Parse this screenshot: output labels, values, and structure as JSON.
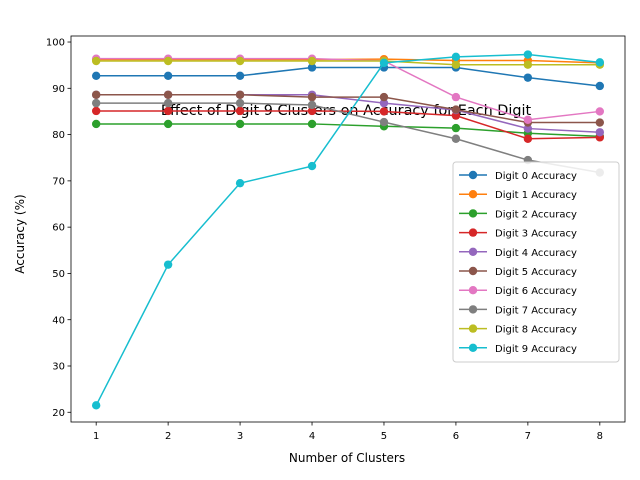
{
  "chart_data": {
    "type": "line",
    "title": "Effect of Digit 9 Clusters on Accuracy for Each Digit",
    "xlabel": "Number of Clusters",
    "ylabel": "Accuracy (%)",
    "x": [
      1,
      2,
      3,
      4,
      5,
      6,
      7,
      8
    ],
    "xlim": [
      0.65,
      8.35
    ],
    "ylim": [
      17.9,
      101.3
    ],
    "xticks": [
      "1",
      "2",
      "3",
      "4",
      "5",
      "6",
      "7",
      "8"
    ],
    "yticks": [
      "20",
      "30",
      "40",
      "50",
      "60",
      "70",
      "80",
      "90",
      "100"
    ],
    "grid": false,
    "legend_position": "lower right",
    "series": [
      {
        "name": "Digit 0 Accuracy",
        "color": "#1f77b4",
        "values": [
          92.7,
          92.7,
          92.7,
          94.5,
          94.5,
          94.5,
          92.3,
          90.5
        ]
      },
      {
        "name": "Digit 1 Accuracy",
        "color": "#ff7f0e",
        "values": [
          96.2,
          96.2,
          96.2,
          96.2,
          96.3,
          96.0,
          96.0,
          95.5
        ]
      },
      {
        "name": "Digit 2 Accuracy",
        "color": "#2ca02c",
        "values": [
          82.3,
          82.3,
          82.3,
          82.3,
          81.8,
          81.4,
          80.3,
          79.6
        ]
      },
      {
        "name": "Digit 3 Accuracy",
        "color": "#d62728",
        "values": [
          85.1,
          85.1,
          85.1,
          85.1,
          85.0,
          84.1,
          79.1,
          79.4
        ]
      },
      {
        "name": "Digit 4 Accuracy",
        "color": "#9467bd",
        "values": [
          88.6,
          88.6,
          88.6,
          88.6,
          86.8,
          85.3,
          81.3,
          80.5
        ]
      },
      {
        "name": "Digit 5 Accuracy",
        "color": "#8c564b",
        "values": [
          88.6,
          88.6,
          88.6,
          88.1,
          88.1,
          85.4,
          82.6,
          82.6
        ]
      },
      {
        "name": "Digit 6 Accuracy",
        "color": "#e377c2",
        "values": [
          96.4,
          96.4,
          96.4,
          96.4,
          95.9,
          88.1,
          83.2,
          85.0
        ]
      },
      {
        "name": "Digit 7 Accuracy",
        "color": "#7f7f7f",
        "values": [
          86.8,
          86.8,
          86.8,
          86.4,
          82.7,
          79.1,
          74.5,
          71.8
        ]
      },
      {
        "name": "Digit 8 Accuracy",
        "color": "#bcbd22",
        "values": [
          95.9,
          95.9,
          95.9,
          95.9,
          95.9,
          95.1,
          95.1,
          95.1
        ]
      },
      {
        "name": "Digit 9 Accuracy",
        "color": "#17becf",
        "values": [
          21.5,
          51.9,
          69.5,
          73.2,
          95.5,
          96.8,
          97.3,
          95.6
        ]
      }
    ]
  }
}
